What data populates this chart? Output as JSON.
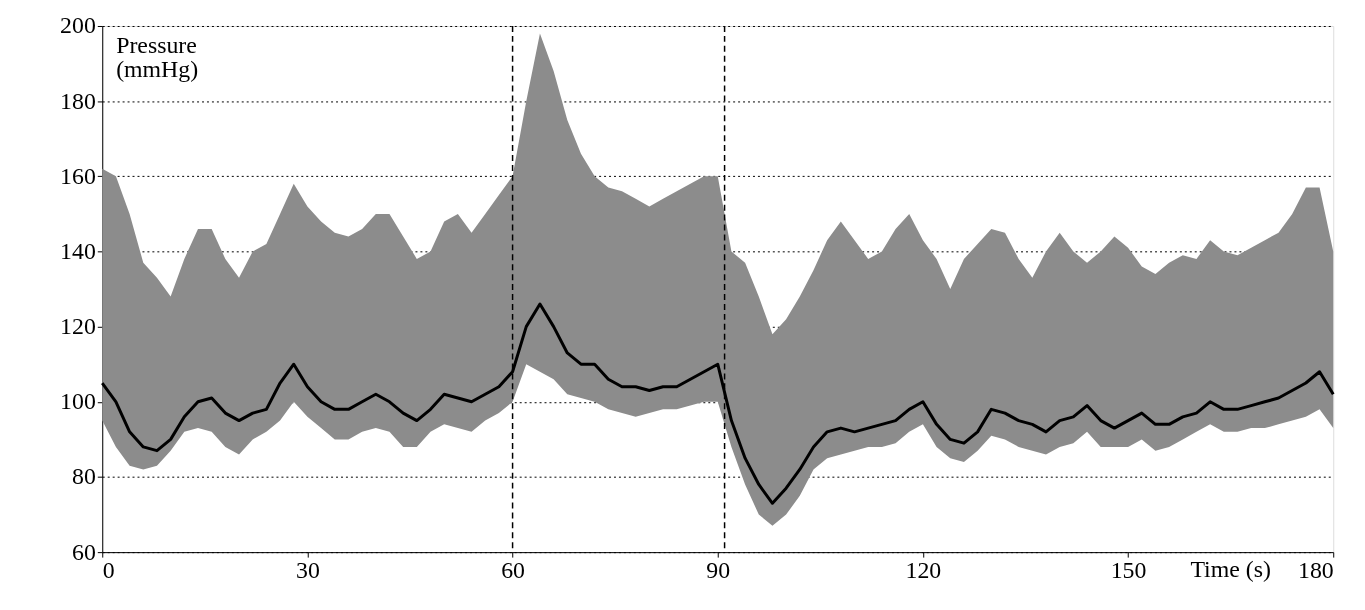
{
  "chart_data": {
    "type": "line",
    "xlabel": "Time (s)",
    "ylabel": "Pressure (mmHg)",
    "x": [
      0,
      2,
      4,
      6,
      8,
      10,
      12,
      14,
      16,
      18,
      20,
      22,
      24,
      26,
      28,
      30,
      32,
      34,
      36,
      38,
      40,
      42,
      44,
      46,
      48,
      50,
      52,
      54,
      56,
      58,
      60,
      62,
      64,
      66,
      68,
      70,
      72,
      74,
      76,
      78,
      80,
      82,
      84,
      86,
      88,
      90,
      92,
      94,
      96,
      98,
      100,
      102,
      104,
      106,
      108,
      110,
      112,
      114,
      116,
      118,
      120,
      122,
      124,
      126,
      128,
      130,
      132,
      134,
      136,
      138,
      140,
      142,
      144,
      146,
      148,
      150,
      152,
      154,
      156,
      158,
      160,
      162,
      164,
      166,
      168,
      170,
      172,
      174,
      176,
      178,
      180
    ],
    "series": [
      {
        "color": "#000000",
        "values": [
          105,
          100,
          92,
          88,
          87,
          90,
          96,
          100,
          101,
          97,
          95,
          97,
          98,
          105,
          110,
          104,
          100,
          98,
          98,
          100,
          102,
          100,
          97,
          95,
          98,
          102,
          101,
          100,
          102,
          104,
          108,
          120,
          126,
          120,
          113,
          110,
          110,
          106,
          104,
          104,
          103,
          104,
          104,
          106,
          108,
          110,
          95,
          85,
          78,
          73,
          77,
          82,
          88,
          92,
          93,
          92,
          93,
          94,
          95,
          98,
          100,
          94,
          90,
          89,
          92,
          98,
          97,
          95,
          94,
          92,
          95,
          96,
          99,
          95,
          93,
          95,
          97,
          94,
          94,
          96,
          97,
          100,
          98,
          98,
          99,
          100,
          101,
          103,
          105,
          108,
          102
        ],
        "lower": [
          95,
          88,
          83,
          82,
          83,
          87,
          92,
          93,
          92,
          88,
          86,
          90,
          92,
          95,
          100,
          96,
          93,
          90,
          90,
          92,
          93,
          92,
          88,
          88,
          92,
          94,
          93,
          92,
          95,
          97,
          100,
          110,
          108,
          106,
          102,
          101,
          100,
          98,
          97,
          96,
          97,
          98,
          98,
          99,
          100,
          100,
          88,
          78,
          70,
          67,
          70,
          75,
          82,
          85,
          86,
          87,
          88,
          88,
          89,
          92,
          94,
          88,
          85,
          84,
          87,
          91,
          90,
          88,
          87,
          86,
          88,
          89,
          92,
          88,
          88,
          88,
          90,
          87,
          88,
          90,
          92,
          94,
          92,
          92,
          93,
          93,
          94,
          95,
          96,
          98,
          93
        ],
        "upper": [
          162,
          160,
          150,
          137,
          133,
          128,
          138,
          146,
          146,
          138,
          133,
          140,
          142,
          150,
          158,
          152,
          148,
          145,
          144,
          146,
          150,
          150,
          144,
          138,
          140,
          148,
          150,
          145,
          150,
          155,
          160,
          180,
          198,
          188,
          175,
          166,
          160,
          157,
          156,
          154,
          152,
          154,
          156,
          158,
          160,
          160,
          140,
          137,
          128,
          118,
          122,
          128,
          135,
          143,
          148,
          143,
          138,
          140,
          146,
          150,
          143,
          138,
          130,
          138,
          142,
          146,
          145,
          138,
          133,
          140,
          145,
          140,
          137,
          140,
          144,
          141,
          136,
          134,
          137,
          139,
          138,
          143,
          140,
          139,
          141,
          143,
          145,
          150,
          157,
          157,
          140
        ]
      }
    ],
    "xlim": [
      0,
      180
    ],
    "xticks": [
      0,
      30,
      60,
      90,
      120,
      150,
      180
    ],
    "ylim": [
      60,
      200
    ],
    "yticks": [
      60,
      80,
      100,
      120,
      140,
      160,
      180,
      200
    ],
    "grid": "y",
    "ref_lines": [
      {
        "axis": "x",
        "value": 60,
        "line_style": "dashed",
        "color": "#000000"
      },
      {
        "axis": "x",
        "value": 91,
        "line_style": "dashed",
        "color": "#000000"
      }
    ]
  }
}
